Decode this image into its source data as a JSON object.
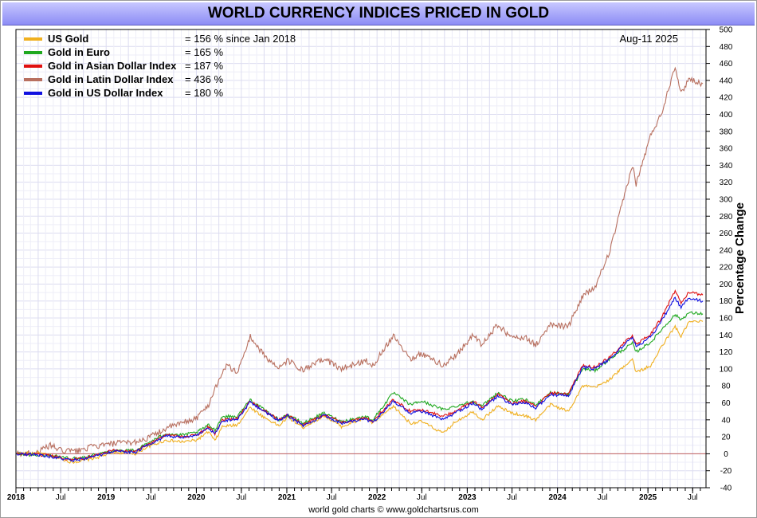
{
  "chart_data": {
    "type": "line",
    "title": "WORLD CURRENCY INDICES PRICED IN GOLD",
    "ylabel": "Percentage Change",
    "date_label": "Aug-11  2025",
    "footer": "world gold charts © www.goldchartsrus.com",
    "ylim": [
      -40,
      500
    ],
    "y_ticks": [
      500,
      480,
      460,
      440,
      420,
      400,
      380,
      360,
      340,
      320,
      300,
      280,
      260,
      240,
      220,
      200,
      180,
      160,
      140,
      120,
      100,
      80,
      60,
      40,
      20,
      0,
      -20,
      -40
    ],
    "xlim": [
      "2018-01-01",
      "2025-08-11"
    ],
    "x_ticks": [
      {
        "label": "2018",
        "date": "2018-01-01",
        "bold": true
      },
      {
        "label": "Jul",
        "date": "2018-07-01",
        "bold": false
      },
      {
        "label": "2019",
        "date": "2019-01-01",
        "bold": true
      },
      {
        "label": "Jul",
        "date": "2019-07-01",
        "bold": false
      },
      {
        "label": "2020",
        "date": "2020-01-01",
        "bold": true
      },
      {
        "label": "Jul",
        "date": "2020-07-01",
        "bold": false
      },
      {
        "label": "2021",
        "date": "2021-01-01",
        "bold": true
      },
      {
        "label": "Jul",
        "date": "2021-07-01",
        "bold": false
      },
      {
        "label": "2022",
        "date": "2022-01-01",
        "bold": true
      },
      {
        "label": "Jul",
        "date": "2022-07-01",
        "bold": false
      },
      {
        "label": "2023",
        "date": "2023-01-01",
        "bold": true
      },
      {
        "label": "Jul",
        "date": "2023-07-01",
        "bold": false
      },
      {
        "label": "2024",
        "date": "2024-01-01",
        "bold": true
      },
      {
        "label": "Jul",
        "date": "2024-07-01",
        "bold": false
      },
      {
        "label": "2025",
        "date": "2025-01-01",
        "bold": true
      },
      {
        "label": "Jul",
        "date": "2025-07-01",
        "bold": false
      }
    ],
    "grid": true,
    "legend_position": "top-left",
    "series": [
      {
        "name": "US Gold",
        "color": "#f0b020",
        "legend_value": "= 156 % since Jan 2018",
        "points": [
          [
            "2018-01-01",
            0
          ],
          [
            "2018-04-01",
            1
          ],
          [
            "2018-06-01",
            -3
          ],
          [
            "2018-08-15",
            -10
          ],
          [
            "2018-10-01",
            -8
          ],
          [
            "2018-12-01",
            -4
          ],
          [
            "2019-02-01",
            2
          ],
          [
            "2019-05-01",
            0
          ],
          [
            "2019-06-15",
            8
          ],
          [
            "2019-09-01",
            16
          ],
          [
            "2019-11-01",
            14
          ],
          [
            "2020-01-01",
            16
          ],
          [
            "2020-02-20",
            26
          ],
          [
            "2020-03-16",
            15
          ],
          [
            "2020-04-15",
            32
          ],
          [
            "2020-06-15",
            34
          ],
          [
            "2020-08-06",
            55
          ],
          [
            "2020-09-25",
            44
          ],
          [
            "2020-11-30",
            33
          ],
          [
            "2021-01-05",
            43
          ],
          [
            "2021-03-08",
            31
          ],
          [
            "2021-06-01",
            45
          ],
          [
            "2021-08-10",
            32
          ],
          [
            "2021-11-15",
            42
          ],
          [
            "2021-12-15",
            36
          ],
          [
            "2022-03-08",
            56
          ],
          [
            "2022-05-15",
            36
          ],
          [
            "2022-07-01",
            38
          ],
          [
            "2022-09-26",
            24
          ],
          [
            "2022-11-15",
            38
          ],
          [
            "2023-01-25",
            50
          ],
          [
            "2023-03-01",
            40
          ],
          [
            "2023-05-04",
            56
          ],
          [
            "2023-07-01",
            48
          ],
          [
            "2023-08-20",
            45
          ],
          [
            "2023-10-05",
            40
          ],
          [
            "2023-12-04",
            58
          ],
          [
            "2024-02-14",
            50
          ],
          [
            "2024-04-12",
            80
          ],
          [
            "2024-06-01",
            78
          ],
          [
            "2024-08-01",
            88
          ],
          [
            "2024-10-30",
            112
          ],
          [
            "2024-11-14",
            96
          ],
          [
            "2025-01-15",
            104
          ],
          [
            "2025-02-24",
            126
          ],
          [
            "2025-04-21",
            150
          ],
          [
            "2025-05-15",
            138
          ],
          [
            "2025-06-15",
            155
          ],
          [
            "2025-08-11",
            156
          ]
        ]
      },
      {
        "name": "Gold in Euro",
        "color": "#1fa81f",
        "legend_value": "= 165 %",
        "points": [
          [
            "2018-01-01",
            0
          ],
          [
            "2018-04-01",
            -2
          ],
          [
            "2018-06-01",
            -2
          ],
          [
            "2018-08-15",
            -6
          ],
          [
            "2018-10-01",
            -4
          ],
          [
            "2018-12-01",
            0
          ],
          [
            "2019-02-01",
            4
          ],
          [
            "2019-05-01",
            4
          ],
          [
            "2019-06-15",
            12
          ],
          [
            "2019-09-01",
            24
          ],
          [
            "2019-11-01",
            22
          ],
          [
            "2020-01-01",
            25
          ],
          [
            "2020-02-20",
            34
          ],
          [
            "2020-03-16",
            28
          ],
          [
            "2020-04-15",
            44
          ],
          [
            "2020-06-15",
            44
          ],
          [
            "2020-08-06",
            64
          ],
          [
            "2020-09-25",
            53
          ],
          [
            "2020-11-30",
            40
          ],
          [
            "2021-01-05",
            46
          ],
          [
            "2021-03-08",
            36
          ],
          [
            "2021-06-01",
            48
          ],
          [
            "2021-08-10",
            38
          ],
          [
            "2021-11-15",
            44
          ],
          [
            "2021-12-15",
            40
          ],
          [
            "2022-03-08",
            72
          ],
          [
            "2022-05-15",
            58
          ],
          [
            "2022-07-01",
            62
          ],
          [
            "2022-09-26",
            52
          ],
          [
            "2022-11-15",
            56
          ],
          [
            "2023-01-25",
            62
          ],
          [
            "2023-03-01",
            56
          ],
          [
            "2023-05-04",
            72
          ],
          [
            "2023-07-01",
            62
          ],
          [
            "2023-08-20",
            64
          ],
          [
            "2023-10-05",
            58
          ],
          [
            "2023-12-04",
            72
          ],
          [
            "2024-02-14",
            70
          ],
          [
            "2024-04-12",
            100
          ],
          [
            "2024-06-01",
            98
          ],
          [
            "2024-08-01",
            112
          ],
          [
            "2024-10-30",
            130
          ],
          [
            "2024-11-14",
            120
          ],
          [
            "2025-01-15",
            132
          ],
          [
            "2025-02-24",
            146
          ],
          [
            "2025-04-21",
            164
          ],
          [
            "2025-05-15",
            158
          ],
          [
            "2025-06-15",
            166
          ],
          [
            "2025-08-11",
            165
          ]
        ]
      },
      {
        "name": "Gold in Asian Dollar Index",
        "color": "#e01010",
        "legend_value": "= 187 %",
        "points": [
          [
            "2018-01-01",
            0
          ],
          [
            "2018-04-01",
            -1
          ],
          [
            "2018-06-01",
            -3
          ],
          [
            "2018-08-15",
            -7
          ],
          [
            "2018-10-01",
            -5
          ],
          [
            "2018-12-01",
            -1
          ],
          [
            "2019-02-01",
            4
          ],
          [
            "2019-05-01",
            3
          ],
          [
            "2019-06-15",
            11
          ],
          [
            "2019-09-01",
            22
          ],
          [
            "2019-11-01",
            20
          ],
          [
            "2020-01-01",
            22
          ],
          [
            "2020-02-20",
            32
          ],
          [
            "2020-03-16",
            24
          ],
          [
            "2020-04-15",
            40
          ],
          [
            "2020-06-15",
            42
          ],
          [
            "2020-08-06",
            62
          ],
          [
            "2020-09-25",
            52
          ],
          [
            "2020-11-30",
            40
          ],
          [
            "2021-01-05",
            46
          ],
          [
            "2021-03-08",
            34
          ],
          [
            "2021-06-01",
            46
          ],
          [
            "2021-08-10",
            37
          ],
          [
            "2021-11-15",
            42
          ],
          [
            "2021-12-15",
            38
          ],
          [
            "2022-03-08",
            64
          ],
          [
            "2022-05-15",
            50
          ],
          [
            "2022-07-01",
            52
          ],
          [
            "2022-09-26",
            44
          ],
          [
            "2022-11-15",
            50
          ],
          [
            "2023-01-25",
            62
          ],
          [
            "2023-03-01",
            54
          ],
          [
            "2023-05-04",
            70
          ],
          [
            "2023-07-01",
            60
          ],
          [
            "2023-08-20",
            62
          ],
          [
            "2023-10-05",
            56
          ],
          [
            "2023-12-04",
            72
          ],
          [
            "2024-02-14",
            70
          ],
          [
            "2024-04-12",
            104
          ],
          [
            "2024-06-01",
            102
          ],
          [
            "2024-08-01",
            114
          ],
          [
            "2024-10-30",
            140
          ],
          [
            "2024-11-14",
            128
          ],
          [
            "2025-01-15",
            142
          ],
          [
            "2025-02-24",
            160
          ],
          [
            "2025-04-21",
            192
          ],
          [
            "2025-05-15",
            178
          ],
          [
            "2025-06-15",
            190
          ],
          [
            "2025-08-11",
            187
          ]
        ]
      },
      {
        "name": "Gold in Latin Dollar Index",
        "color": "#b87060",
        "legend_value": "= 436 %",
        "points": [
          [
            "2018-01-01",
            0
          ],
          [
            "2018-04-01",
            2
          ],
          [
            "2018-05-20",
            10
          ],
          [
            "2018-07-01",
            4
          ],
          [
            "2018-09-01",
            3
          ],
          [
            "2018-11-01",
            8
          ],
          [
            "2019-02-01",
            12
          ],
          [
            "2019-05-01",
            14
          ],
          [
            "2019-06-15",
            18
          ],
          [
            "2019-09-01",
            30
          ],
          [
            "2019-11-01",
            36
          ],
          [
            "2020-01-01",
            42
          ],
          [
            "2020-02-20",
            58
          ],
          [
            "2020-03-20",
            80
          ],
          [
            "2020-05-01",
            104
          ],
          [
            "2020-06-15",
            96
          ],
          [
            "2020-08-06",
            138
          ],
          [
            "2020-09-25",
            118
          ],
          [
            "2020-11-30",
            100
          ],
          [
            "2021-01-05",
            110
          ],
          [
            "2021-03-08",
            98
          ],
          [
            "2021-06-01",
            112
          ],
          [
            "2021-08-10",
            100
          ],
          [
            "2021-11-15",
            110
          ],
          [
            "2021-12-15",
            104
          ],
          [
            "2022-03-08",
            140
          ],
          [
            "2022-05-15",
            112
          ],
          [
            "2022-07-01",
            118
          ],
          [
            "2022-09-26",
            104
          ],
          [
            "2022-11-15",
            116
          ],
          [
            "2023-01-25",
            140
          ],
          [
            "2023-03-01",
            128
          ],
          [
            "2023-05-04",
            152
          ],
          [
            "2023-07-01",
            136
          ],
          [
            "2023-08-20",
            138
          ],
          [
            "2023-10-05",
            128
          ],
          [
            "2023-12-04",
            152
          ],
          [
            "2024-02-14",
            150
          ],
          [
            "2024-04-12",
            186
          ],
          [
            "2024-06-01",
            196
          ],
          [
            "2024-08-01",
            240
          ],
          [
            "2024-10-30",
            340
          ],
          [
            "2024-11-14",
            318
          ],
          [
            "2025-01-15",
            378
          ],
          [
            "2025-02-24",
            400
          ],
          [
            "2025-04-21",
            458
          ],
          [
            "2025-05-15",
            424
          ],
          [
            "2025-06-15",
            442
          ],
          [
            "2025-08-11",
            436
          ]
        ]
      },
      {
        "name": "Gold in US Dollar Index",
        "color": "#1010e0",
        "legend_value": "= 180 %",
        "points": [
          [
            "2018-01-01",
            0
          ],
          [
            "2018-04-01",
            -1
          ],
          [
            "2018-06-01",
            -4
          ],
          [
            "2018-08-15",
            -8
          ],
          [
            "2018-10-01",
            -6
          ],
          [
            "2018-12-01",
            -2
          ],
          [
            "2019-02-01",
            3
          ],
          [
            "2019-05-01",
            2
          ],
          [
            "2019-06-15",
            10
          ],
          [
            "2019-09-01",
            21
          ],
          [
            "2019-11-01",
            19
          ],
          [
            "2020-01-01",
            21
          ],
          [
            "2020-02-20",
            31
          ],
          [
            "2020-03-16",
            23
          ],
          [
            "2020-04-15",
            39
          ],
          [
            "2020-06-15",
            41
          ],
          [
            "2020-08-06",
            61
          ],
          [
            "2020-09-25",
            51
          ],
          [
            "2020-11-30",
            39
          ],
          [
            "2021-01-05",
            45
          ],
          [
            "2021-03-08",
            33
          ],
          [
            "2021-06-01",
            45
          ],
          [
            "2021-08-10",
            36
          ],
          [
            "2021-11-15",
            41
          ],
          [
            "2021-12-15",
            37
          ],
          [
            "2022-03-08",
            62
          ],
          [
            "2022-05-15",
            48
          ],
          [
            "2022-07-01",
            50
          ],
          [
            "2022-09-26",
            40
          ],
          [
            "2022-11-15",
            48
          ],
          [
            "2023-01-25",
            60
          ],
          [
            "2023-03-01",
            52
          ],
          [
            "2023-05-04",
            68
          ],
          [
            "2023-07-01",
            58
          ],
          [
            "2023-08-20",
            60
          ],
          [
            "2023-10-05",
            54
          ],
          [
            "2023-12-04",
            70
          ],
          [
            "2024-02-14",
            68
          ],
          [
            "2024-04-12",
            102
          ],
          [
            "2024-06-01",
            100
          ],
          [
            "2024-08-01",
            112
          ],
          [
            "2024-10-30",
            138
          ],
          [
            "2024-11-14",
            126
          ],
          [
            "2025-01-15",
            138
          ],
          [
            "2025-02-24",
            156
          ],
          [
            "2025-04-21",
            184
          ],
          [
            "2025-05-15",
            172
          ],
          [
            "2025-06-15",
            184
          ],
          [
            "2025-08-11",
            180
          ]
        ]
      }
    ]
  }
}
